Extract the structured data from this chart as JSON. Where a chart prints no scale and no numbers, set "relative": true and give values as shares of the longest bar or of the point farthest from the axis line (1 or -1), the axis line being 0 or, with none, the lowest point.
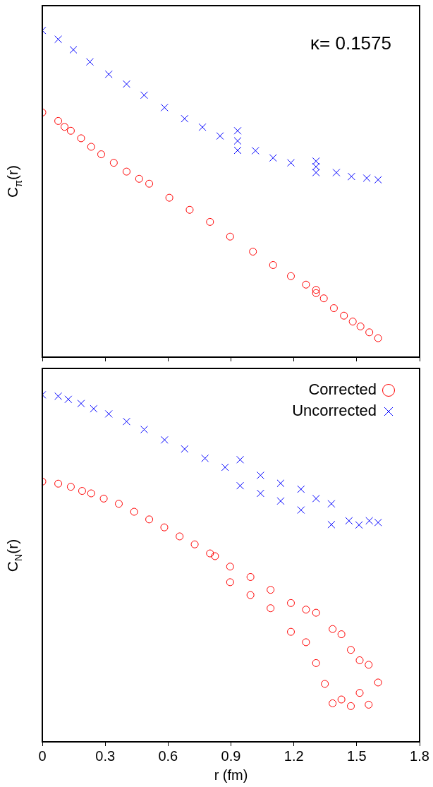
{
  "chart_data": [
    {
      "type": "scatter",
      "ylabel": "C$_{π}$(r)",
      "annotations": [
        "κ= 0.1575"
      ],
      "relative": true,
      "xlim": [
        0,
        1.8
      ],
      "xticks": [
        0,
        0.3,
        0.6,
        0.9,
        1.2,
        1.5,
        1.8
      ],
      "tick_labels": false,
      "grid": false,
      "series": [
        {
          "color": "#0000ff",
          "marker": "cross",
          "x": [
            0,
            0.076,
            0.148,
            0.227,
            0.317,
            0.402,
            0.486,
            0.583,
            0.679,
            0.764,
            0.848,
            0.932,
            0.932,
            0.932,
            1.017,
            1.101,
            1.186,
            1.306,
            1.306,
            1.306,
            1.403,
            1.475,
            1.548,
            1.602
          ],
          "values": [
            1.0,
            0.973,
            0.941,
            0.904,
            0.866,
            0.836,
            0.802,
            0.764,
            0.73,
            0.704,
            0.677,
            0.693,
            0.662,
            0.633,
            0.632,
            0.61,
            0.595,
            0.6,
            0.583,
            0.565,
            0.565,
            0.553,
            0.548,
            0.543
          ]
        },
        {
          "color": "#ff0000",
          "marker": "circle",
          "x": [
            0,
            0.076,
            0.106,
            0.136,
            0.185,
            0.233,
            0.281,
            0.341,
            0.402,
            0.462,
            0.51,
            0.606,
            0.703,
            0.8,
            0.896,
            1.005,
            1.101,
            1.186,
            1.258,
            1.306,
            1.306,
            1.343,
            1.391,
            1.439,
            1.481,
            1.518,
            1.56,
            1.602
          ],
          "values": [
            0.749,
            0.723,
            0.705,
            0.693,
            0.67,
            0.644,
            0.621,
            0.595,
            0.568,
            0.546,
            0.531,
            0.488,
            0.451,
            0.414,
            0.369,
            0.323,
            0.282,
            0.248,
            0.222,
            0.206,
            0.196,
            0.18,
            0.15,
            0.127,
            0.109,
            0.094,
            0.076,
            0.058
          ]
        }
      ]
    },
    {
      "type": "scatter",
      "xlabel": "r (fm)",
      "ylabel": "C$_{N}$(r)",
      "relative": true,
      "xlim": [
        0,
        1.8
      ],
      "xticks": [
        0,
        0.3,
        0.6,
        0.9,
        1.2,
        1.5,
        1.8
      ],
      "tick_labels": "x",
      "grid": false,
      "legend": "top right",
      "series": [
        {
          "name": "Corrected",
          "color": "#ff0000",
          "marker": "circle",
          "x": [
            0,
            0.076,
            0.136,
            0.19,
            0.233,
            0.293,
            0.365,
            0.438,
            0.51,
            0.582,
            0.655,
            0.727,
            0.8,
            0.824,
            0.896,
            0.896,
            0.993,
            0.993,
            1.089,
            1.089,
            1.186,
            1.186,
            1.258,
            1.258,
            1.306,
            1.306,
            1.348,
            1.385,
            1.385,
            1.427,
            1.427,
            1.472,
            1.472,
            1.514,
            1.514,
            1.557,
            1.557,
            1.602
          ],
          "values": [
            0.75,
            0.744,
            0.735,
            0.723,
            0.716,
            0.701,
            0.686,
            0.663,
            0.641,
            0.618,
            0.592,
            0.569,
            0.543,
            0.535,
            0.505,
            0.46,
            0.475,
            0.423,
            0.438,
            0.385,
            0.4,
            0.317,
            0.381,
            0.287,
            0.372,
            0.227,
            0.167,
            0.325,
            0.111,
            0.31,
            0.122,
            0.265,
            0.103,
            0.235,
            0.141,
            0.222,
            0.107,
            0.171
          ]
        },
        {
          "name": "Uncorrected",
          "color": "#0000ff",
          "marker": "cross",
          "x": [
            0,
            0.076,
            0.124,
            0.185,
            0.245,
            0.317,
            0.402,
            0.486,
            0.583,
            0.679,
            0.776,
            0.872,
            0.944,
            0.944,
            1.041,
            1.041,
            1.137,
            1.137,
            1.234,
            1.234,
            1.306,
            1.379,
            1.379,
            1.463,
            1.511,
            1.56,
            1.602
          ],
          "values": [
            1.0,
            0.996,
            0.987,
            0.975,
            0.96,
            0.945,
            0.923,
            0.9,
            0.87,
            0.844,
            0.817,
            0.791,
            0.813,
            0.738,
            0.768,
            0.716,
            0.745,
            0.694,
            0.728,
            0.668,
            0.701,
            0.686,
            0.626,
            0.637,
            0.625,
            0.637,
            0.632
          ]
        }
      ]
    }
  ]
}
